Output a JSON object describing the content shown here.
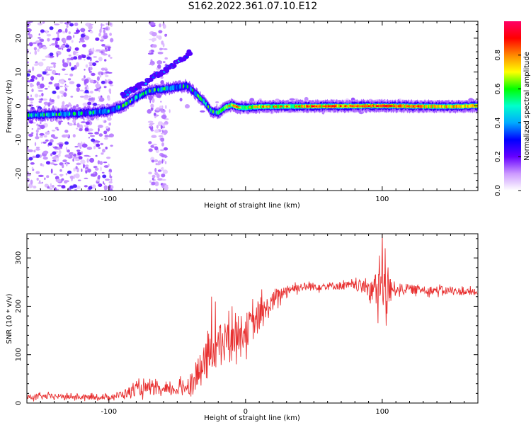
{
  "title": "S162.2022.361.07.10.E12",
  "chart_data": [
    {
      "type": "heatmap",
      "xlabel": "Height of straight line (km)",
      "ylabel": "Frequency (Hz)",
      "xlim": [
        -160,
        170
      ],
      "ylim": [
        -25,
        25
      ],
      "x_ticks": [
        -100,
        0,
        100
      ],
      "x_tick_labels": [
        "-100",
        "",
        "100"
      ],
      "y_ticks": [
        -20,
        -10,
        0,
        10,
        20
      ],
      "y_tick_labels": [
        "-20",
        "-10",
        "0",
        "10",
        "20"
      ],
      "colorbar": {
        "label": "Normalized spectral amplitude",
        "range": [
          0,
          1
        ],
        "ticks": [
          0.0,
          0.2,
          0.4,
          0.6,
          0.8
        ],
        "tick_labels": [
          "0.0",
          "0.2",
          "0.4",
          "0.6",
          "0.8"
        ],
        "colors": [
          "#ffffff",
          "#cc99ff",
          "#6600ff",
          "#0000ff",
          "#00aaff",
          "#00ffcc",
          "#00ff00",
          "#ffff00",
          "#ff8800",
          "#ff0000",
          "#ff0066"
        ]
      },
      "ridge": {
        "x": [
          -160,
          -140,
          -120,
          -100,
          -90,
          -80,
          -70,
          -60,
          -50,
          -44,
          -40,
          -35,
          -30,
          -25,
          -20,
          -15,
          -10,
          -5,
          0,
          10,
          20,
          50,
          100,
          150,
          170
        ],
        "y": [
          -2.8,
          -2.5,
          -2.2,
          -1.5,
          0,
          2.5,
          4.5,
          5.0,
          5.5,
          6.0,
          5.0,
          3.0,
          1.0,
          -1.5,
          -2.0,
          -0.5,
          0.3,
          -0.5,
          -0.5,
          -0.2,
          -0.2,
          -0.1,
          0,
          -0.2,
          0
        ]
      },
      "secondary_branch": {
        "x": [
          -90,
          -80,
          -70,
          -60,
          -55,
          -50,
          -45,
          -40
        ],
        "y": [
          3.0,
          5.5,
          7.5,
          10.5,
          11.5,
          13,
          14.5,
          16
        ]
      }
    },
    {
      "type": "line",
      "xlabel": "Height of straight line (km)",
      "ylabel": "SNR (10 * v/v)",
      "xlim": [
        -160,
        170
      ],
      "ylim": [
        0,
        350
      ],
      "x_ticks": [
        -100,
        0,
        100
      ],
      "x_tick_labels": [
        "-100",
        "0",
        "100"
      ],
      "y_ticks": [
        0,
        100,
        200,
        300
      ],
      "y_tick_labels": [
        "0",
        "100",
        "200",
        "300"
      ],
      "color": "#e83030",
      "series": [
        {
          "x": [
            -160,
            -140,
            -120,
            -100,
            -90,
            -80,
            -70,
            -60,
            -50,
            -40,
            -30,
            -20,
            -10,
            0,
            10,
            20,
            30,
            40,
            60,
            80,
            90,
            95,
            100,
            105,
            110,
            130,
            150,
            170
          ],
          "y": [
            12,
            14,
            12,
            12,
            18,
            28,
            30,
            25,
            28,
            40,
            80,
            120,
            140,
            150,
            175,
            210,
            235,
            240,
            242,
            243,
            240,
            232,
            240,
            232,
            237,
            234,
            232,
            228
          ],
          "noise": [
            6,
            6,
            6,
            5,
            10,
            14,
            15,
            12,
            14,
            22,
            45,
            45,
            40,
            40,
            35,
            22,
            12,
            10,
            9,
            10,
            22,
            40,
            60,
            35,
            12,
            10,
            9,
            8
          ],
          "peaks": [
            {
              "x": 100,
              "y": 350
            },
            {
              "x": 102,
              "y": 320
            },
            {
              "x": 98,
              "y": 305
            },
            {
              "x": 97,
              "y": 165
            },
            {
              "x": 103,
              "y": 160
            },
            {
              "x": -25,
              "y": 220
            },
            {
              "x": -22,
              "y": 210
            },
            {
              "x": -10,
              "y": 200
            },
            {
              "x": 12,
              "y": 235
            }
          ]
        }
      ]
    }
  ]
}
